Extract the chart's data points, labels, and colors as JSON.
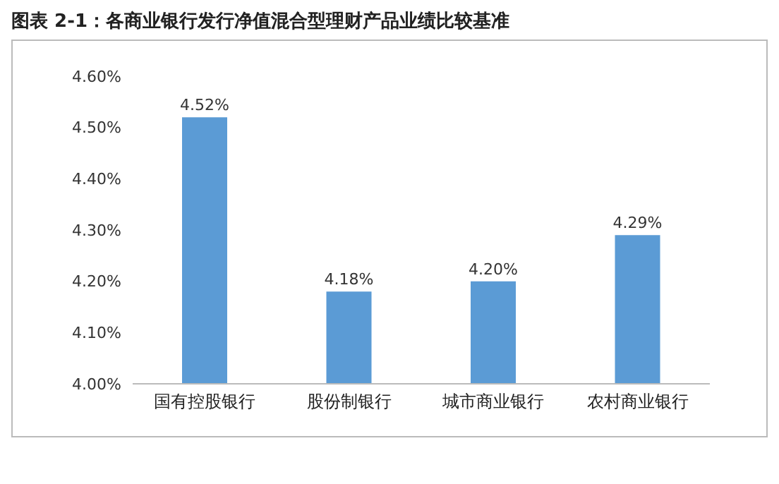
{
  "chart_data": {
    "type": "bar",
    "title": "图表 2-1：各商业银行发行净值混合型理财产品业绩比较基准",
    "categories": [
      "国有控股银行",
      "股份制银行",
      "城市商业银行",
      "农村商业银行"
    ],
    "values": [
      4.52,
      4.18,
      4.2,
      4.29
    ],
    "value_labels": [
      "4.52%",
      "4.18%",
      "4.20%",
      "4.29%"
    ],
    "color": "#5b9bd5",
    "ylim": [
      4.0,
      4.6
    ],
    "yticks": [
      {
        "value": 4.0,
        "label": "4.00%"
      },
      {
        "value": 4.1,
        "label": "4.10%"
      },
      {
        "value": 4.2,
        "label": "4.20%"
      },
      {
        "value": 4.3,
        "label": "4.30%"
      },
      {
        "value": 4.4,
        "label": "4.40%"
      },
      {
        "value": 4.5,
        "label": "4.50%"
      },
      {
        "value": 4.6,
        "label": "4.60%"
      }
    ],
    "grid": false,
    "legend": false
  }
}
